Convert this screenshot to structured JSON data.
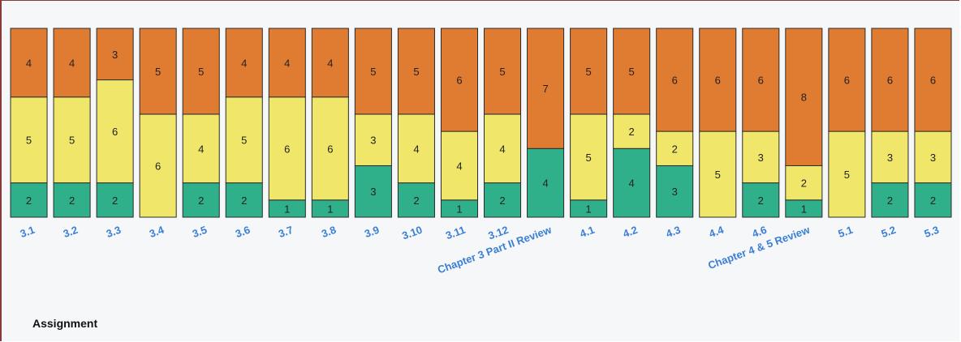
{
  "chart_data": {
    "type": "bar",
    "stacked": true,
    "xlabel": "Assignment",
    "categories": [
      "3.1",
      "3.2",
      "3.3",
      "3.4",
      "3.5",
      "3.6",
      "3.7",
      "3.8",
      "3.9",
      "3.10",
      "3.11",
      "3.12",
      "Chapter 3 Part II Review",
      "4.1",
      "4.2",
      "4.3",
      "4.4",
      "4.6",
      "Chapter 4 & 5 Review",
      "5.1",
      "5.2",
      "5.3"
    ],
    "series": [
      {
        "color": "#2fb08a",
        "values": [
          2,
          2,
          2,
          0,
          2,
          2,
          1,
          1,
          3,
          2,
          1,
          2,
          4,
          1,
          4,
          3,
          0,
          2,
          1,
          0,
          2,
          2
        ]
      },
      {
        "color": "#f0e66a",
        "values": [
          5,
          5,
          6,
          6,
          4,
          5,
          6,
          6,
          3,
          4,
          4,
          4,
          0,
          5,
          2,
          2,
          5,
          3,
          2,
          5,
          3,
          3
        ]
      },
      {
        "color": "#e07b32",
        "values": [
          4,
          4,
          3,
          5,
          5,
          4,
          4,
          4,
          5,
          5,
          6,
          5,
          7,
          5,
          5,
          6,
          6,
          6,
          8,
          6,
          6,
          6
        ]
      }
    ],
    "ylim": [
      0,
      11
    ],
    "tick_label_color": "#3a7fd5"
  }
}
